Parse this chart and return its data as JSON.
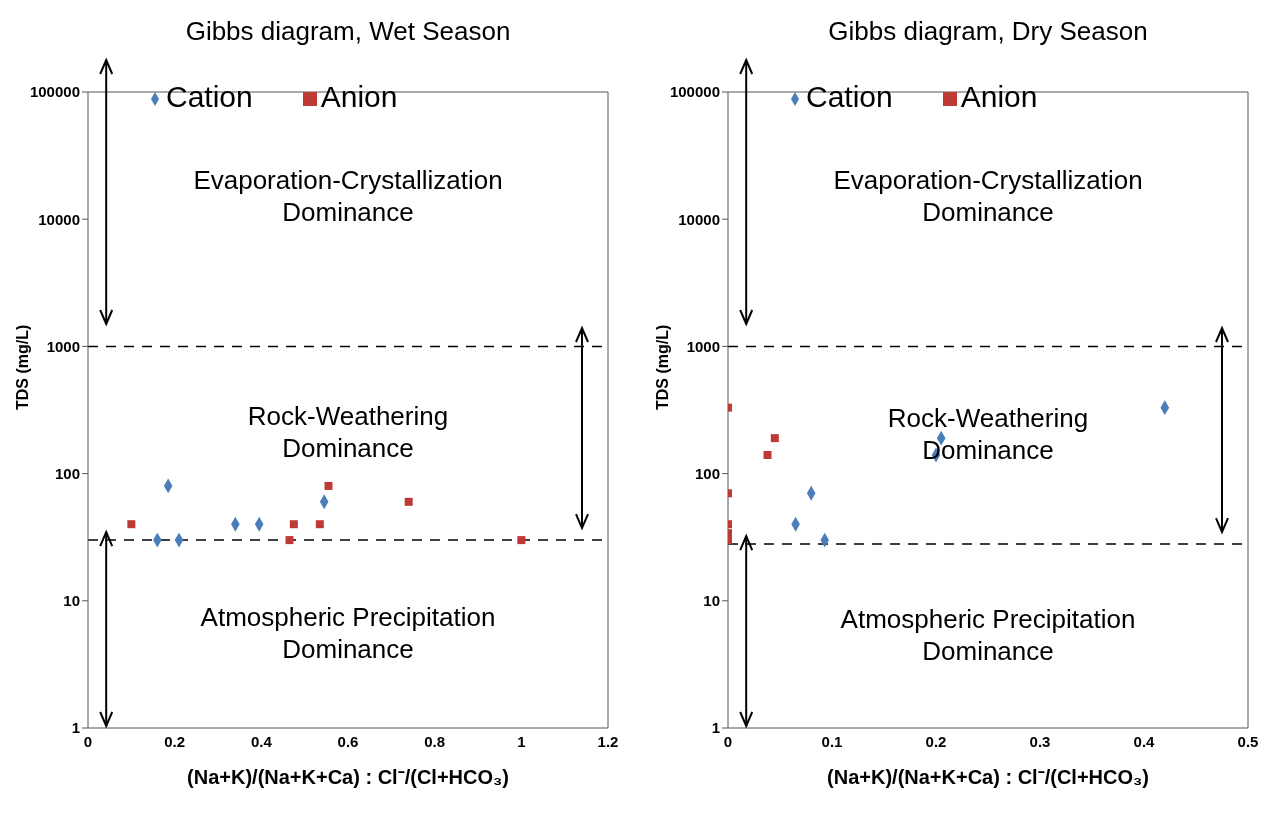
{
  "chart_data": [
    {
      "type": "scatter",
      "title": "Gibbs diagram, Wet Season",
      "xlabel": "(Na+K)/(Na+K+Ca) : Cl⁻/(Cl+HCO₃)",
      "ylabel": "TDS (mg/L)",
      "log": "y",
      "grid": false,
      "legend": "top",
      "xlim": [
        0,
        1.2
      ],
      "xticks": [
        0,
        0.2,
        0.4,
        0.6,
        0.8,
        1,
        1.2
      ],
      "ylim": [
        1,
        100000
      ],
      "yticks": [
        1,
        10,
        100,
        1000,
        10000,
        100000
      ],
      "series": [
        {
          "name": "Cation",
          "color": "#4a7ebb",
          "marker": "diamond",
          "x": [
            0.16,
            0.185,
            0.21,
            0.34,
            0.395,
            0.545
          ],
          "values": [
            30,
            80,
            30,
            40,
            40,
            60
          ]
        },
        {
          "name": "Anion",
          "color": "#be3a34",
          "marker": "square",
          "x": [
            0.1,
            0.465,
            0.475,
            0.535,
            0.555,
            0.74,
            1.0
          ],
          "values": [
            40,
            30,
            40,
            40,
            80,
            60,
            30
          ]
        }
      ],
      "ref_lines": [
        {
          "axis": "y",
          "value": 1000,
          "line_style": "dashed",
          "color": "#000000"
        },
        {
          "axis": "y",
          "value": 30,
          "line_style": "dashed",
          "color": "#000000"
        }
      ],
      "annotations": [
        "Evaporation-Crystallization\nDominance",
        "Rock-Weathering\nDominance",
        "Atmospheric Precipitation\nDominance"
      ]
    },
    {
      "type": "scatter",
      "title": "Gibbs diagram, Dry Season",
      "xlabel": "(Na+K)/(Na+K+Ca) : Cl⁻/(Cl+HCO₃)",
      "ylabel": "TDS (mg/L)",
      "log": "y",
      "grid": false,
      "legend": "top",
      "xlim": [
        0,
        0.5
      ],
      "xticks": [
        0,
        0.1,
        0.2,
        0.3,
        0.4,
        0.5
      ],
      "ylim": [
        1,
        100000
      ],
      "yticks": [
        1,
        10,
        100,
        1000,
        10000,
        100000
      ],
      "series": [
        {
          "name": "Cation",
          "color": "#4a7ebb",
          "marker": "diamond",
          "x": [
            0.065,
            0.08,
            0.093,
            0.2,
            0.205,
            0.42
          ],
          "values": [
            40,
            70,
            30,
            140,
            190,
            330
          ]
        },
        {
          "name": "Anion",
          "color": "#be3a34",
          "marker": "square",
          "x": [
            0,
            0,
            0,
            0,
            0,
            0.038,
            0.045
          ],
          "values": [
            330,
            70,
            40,
            34,
            30,
            140,
            190
          ]
        }
      ],
      "ref_lines": [
        {
          "axis": "y",
          "value": 1000,
          "line_style": "dashed",
          "color": "#000000"
        },
        {
          "axis": "y",
          "value": 28,
          "line_style": "dashed",
          "color": "#000000"
        }
      ],
      "annotations": [
        "Evaporation-Crystallization\nDominance",
        "Rock-Weathering\nDominance",
        "Atmospheric Precipitation\nDominance"
      ]
    }
  ]
}
